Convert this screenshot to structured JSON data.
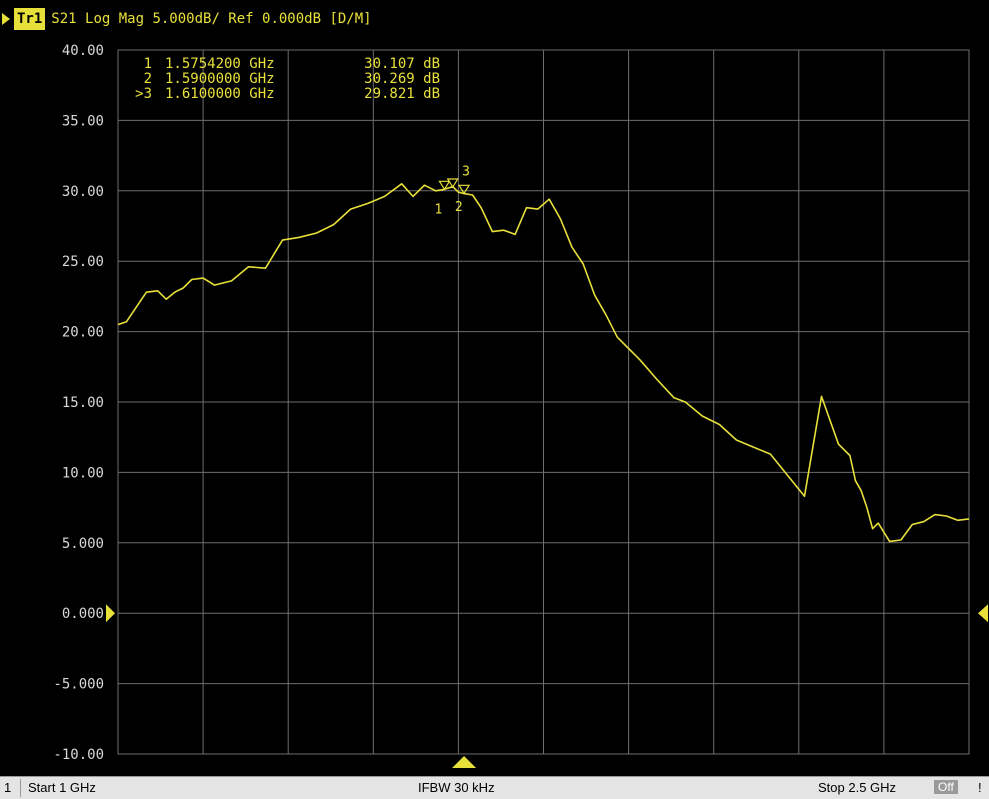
{
  "header": {
    "trace_tag": "Tr1",
    "text": "S21 Log Mag 5.000dB/ Ref 0.000dB [D/M]"
  },
  "markers": [
    {
      "index": "1",
      "freq": "1.5754200 GHz",
      "value": "30.107 dB",
      "active": false
    },
    {
      "index": "2",
      "freq": "1.5900000 GHz",
      "value": "30.269 dB",
      "active": false
    },
    {
      "index": ">3",
      "freq": "1.6100000 GHz",
      "value": "29.821 dB",
      "active": true
    }
  ],
  "footer": {
    "channel": "1",
    "start": "Start 1 GHz",
    "ifbw": "IFBW 30 kHz",
    "stop": "Stop 2.5 GHz",
    "status": "Off",
    "flag": "!"
  },
  "colors": {
    "trace": "#e8e03a",
    "grid": "#6e6e6e",
    "background": "#000000",
    "axis_text": "#d8d8d8"
  },
  "chart_data": {
    "type": "line",
    "xlabel": "",
    "ylabel": "",
    "xlim": [
      1.0,
      2.5
    ],
    "ylim": [
      -10,
      40
    ],
    "x_unit": "GHz",
    "y_unit": "dB",
    "grid": true,
    "y_tick_labels": [
      "40.00",
      "35.00",
      "30.00",
      "25.00",
      "20.00",
      "15.00",
      "10.00",
      "5.000",
      "0.000",
      "-5.000",
      "-10.00"
    ],
    "y_ticks": [
      40,
      35,
      30,
      25,
      20,
      15,
      10,
      5,
      0,
      -5,
      -10
    ],
    "reference_level": 0,
    "series": [
      {
        "name": "S21",
        "x": [
          1.0,
          1.015,
          1.03,
          1.05,
          1.07,
          1.085,
          1.1,
          1.115,
          1.13,
          1.15,
          1.17,
          1.2,
          1.23,
          1.26,
          1.29,
          1.32,
          1.35,
          1.38,
          1.41,
          1.44,
          1.47,
          1.5,
          1.52,
          1.54,
          1.56,
          1.575,
          1.59,
          1.6,
          1.61,
          1.625,
          1.64,
          1.66,
          1.68,
          1.7,
          1.72,
          1.74,
          1.76,
          1.78,
          1.8,
          1.82,
          1.84,
          1.86,
          1.88,
          1.9,
          1.92,
          1.95,
          1.98,
          2.0,
          2.03,
          2.06,
          2.09,
          2.12,
          2.15,
          2.18,
          2.21,
          2.24,
          2.27,
          2.29,
          2.3,
          2.31,
          2.32,
          2.33,
          2.34,
          2.36,
          2.38,
          2.4,
          2.42,
          2.44,
          2.46,
          2.48,
          2.5
        ],
        "y": [
          20.5,
          20.7,
          21.6,
          22.8,
          22.9,
          22.3,
          22.8,
          23.1,
          23.7,
          23.8,
          23.3,
          23.6,
          24.6,
          24.5,
          26.5,
          26.7,
          27.0,
          27.6,
          28.7,
          29.1,
          29.6,
          30.5,
          29.6,
          30.4,
          30.0,
          30.1,
          30.3,
          29.9,
          29.8,
          29.7,
          28.8,
          27.1,
          27.2,
          26.9,
          28.8,
          28.7,
          29.4,
          28.0,
          26.0,
          24.8,
          22.6,
          21.2,
          19.6,
          18.8,
          18.0,
          16.6,
          15.3,
          15.0,
          14.0,
          13.4,
          12.3,
          11.8,
          11.3,
          9.8,
          8.3,
          15.4,
          12.0,
          11.2,
          9.4,
          8.7,
          7.5,
          6.0,
          6.4,
          5.1,
          5.2,
          6.3,
          6.5,
          7.0,
          6.9,
          6.6,
          6.7
        ]
      }
    ],
    "marker_points": [
      {
        "label": "1",
        "x": 1.57542,
        "y": 30.107
      },
      {
        "label": "2",
        "x": 1.59,
        "y": 30.269
      },
      {
        "label": "3",
        "x": 1.61,
        "y": 29.821
      }
    ]
  }
}
